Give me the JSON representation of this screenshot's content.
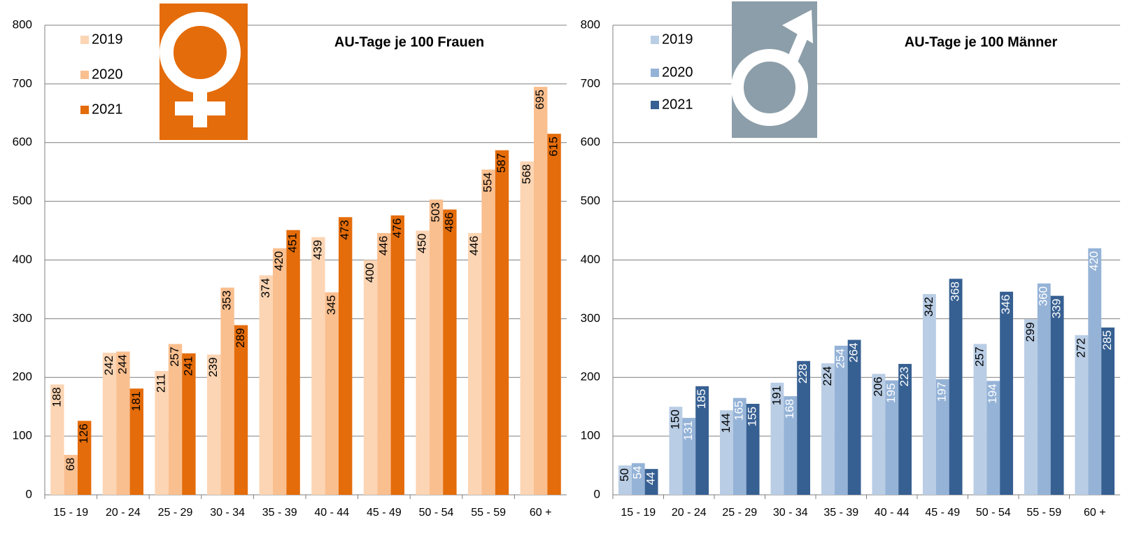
{
  "chart_data": [
    {
      "type": "bar",
      "title": "AU-Tage je 100 Frauen",
      "categories": [
        "15 - 19",
        "20 - 24",
        "25 - 29",
        "30 - 34",
        "35 - 39",
        "40 - 44",
        "45 - 49",
        "50 - 54",
        "55 - 59",
        "60 +"
      ],
      "series": [
        {
          "name": "2019",
          "color": "#fcd5b4",
          "values": [
            188,
            242,
            211,
            239,
            374,
            439,
            400,
            450,
            446,
            568
          ]
        },
        {
          "name": "2020",
          "color": "#fabf8f",
          "values": [
            68,
            244,
            257,
            353,
            420,
            345,
            446,
            503,
            554,
            695
          ]
        },
        {
          "name": "2021",
          "color": "#e46c0a",
          "values": [
            126,
            181,
            241,
            289,
            451,
            473,
            476,
            486,
            587,
            615
          ]
        }
      ],
      "ylim": [
        0,
        800
      ],
      "yticks": [
        0,
        100,
        200,
        300,
        400,
        500,
        600,
        700,
        800
      ],
      "grid": true,
      "legend": "top-left"
    },
    {
      "type": "bar",
      "title": "AU-Tage je 100 Männer",
      "categories": [
        "15 - 19",
        "20 - 24",
        "25 - 29",
        "30 - 34",
        "35 - 39",
        "40 - 44",
        "45 - 49",
        "50 - 54",
        "55 - 59",
        "60 +"
      ],
      "series": [
        {
          "name": "2019",
          "color": "#b9cde5",
          "values": [
            50,
            150,
            144,
            191,
            224,
            206,
            342,
            257,
            299,
            272
          ]
        },
        {
          "name": "2020",
          "color": "#95b3d7",
          "values": [
            54,
            131,
            165,
            168,
            254,
            195,
            197,
            194,
            360,
            420
          ]
        },
        {
          "name": "2021",
          "color": "#376092",
          "values": [
            44,
            185,
            155,
            228,
            264,
            223,
            368,
            346,
            339,
            285
          ]
        }
      ],
      "ylim": [
        0,
        800
      ],
      "yticks": [
        0,
        100,
        200,
        300,
        400,
        500,
        600,
        700,
        800
      ],
      "grid": true,
      "legend": "top-left"
    }
  ]
}
